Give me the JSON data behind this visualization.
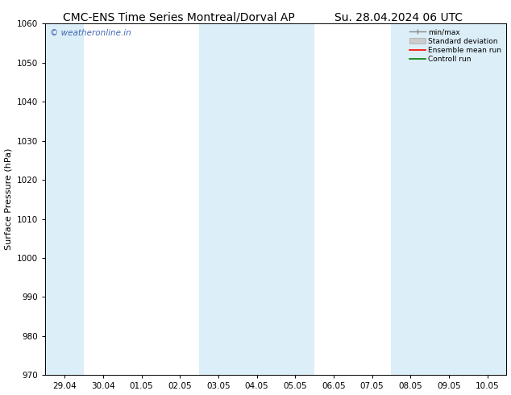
{
  "title_left": "CMC-ENS Time Series Montreal/Dorval AP",
  "title_right": "Su. 28.04.2024 06 UTC",
  "ylabel": "Surface Pressure (hPa)",
  "ylim": [
    970,
    1060
  ],
  "yticks": [
    970,
    980,
    990,
    1000,
    1010,
    1020,
    1030,
    1040,
    1050,
    1060
  ],
  "xtick_labels": [
    "29.04",
    "30.04",
    "01.05",
    "02.05",
    "03.05",
    "04.05",
    "05.05",
    "06.05",
    "07.05",
    "08.05",
    "09.05",
    "10.05"
  ],
  "xtick_positions": [
    0,
    1,
    2,
    3,
    4,
    5,
    6,
    7,
    8,
    9,
    10,
    11
  ],
  "xlim_start": -0.5,
  "xlim_end": 11.5,
  "shaded_bands": [
    {
      "x_start": -0.5,
      "x_end": 0.5
    },
    {
      "x_start": 3.5,
      "x_end": 6.5
    },
    {
      "x_start": 8.5,
      "x_end": 11.5
    }
  ],
  "shaded_color": "#dceef8",
  "watermark_text": "© weatheronline.in",
  "watermark_color": "#4169b0",
  "background_color": "#ffffff",
  "title_fontsize": 10,
  "axis_label_fontsize": 8,
  "tick_fontsize": 7.5
}
